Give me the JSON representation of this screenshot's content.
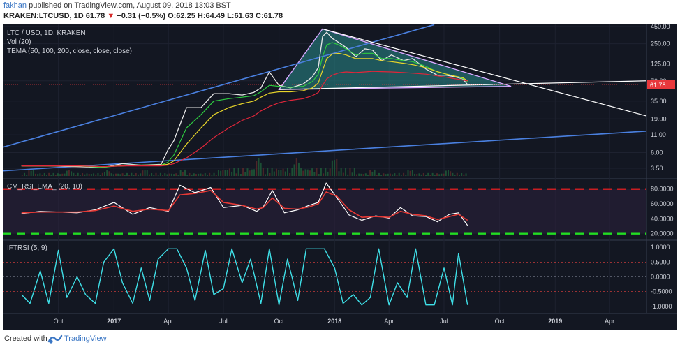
{
  "header": {
    "author": "fakhan",
    "published_text": "published on TradingView.com, August 09, 2018 13:03 BST",
    "symbol": "KRAKEN:LTCUSD, 1D",
    "last": "61.78",
    "change": "−0.31 (−0.5%)",
    "ohlc": "O:62.25 H:64.49 L:61.63 C:61.78"
  },
  "footer": {
    "created_with": "Created with",
    "brand": "TradingView"
  },
  "colors": {
    "background": "#131722",
    "candle_up": "#e8e8e8",
    "tema_50": "#2ecc40",
    "tema_100": "#e8d52a",
    "tema_200": "#e0263a",
    "rsi_line": "#ffffff",
    "rsi_ema": "#e53935",
    "overbought": "#ff1f1f",
    "oversold": "#22dd22",
    "iftrsi": "#3fe0e8",
    "trend_blue": "#4a80e0",
    "triangle": "#d7a8ff",
    "triangle_fill": "#2a8c8c",
    "price_tag": "#e8383c"
  },
  "chart_data": [
    {
      "type": "line",
      "pane": "price",
      "title": "LTC / USD, 1D, KRAKEN",
      "indicators": [
        "Vol (20)",
        "TEMA (50, 100, 200, close, close, close)"
      ],
      "scale": "log",
      "y_ticks": [
        "450.00",
        "250.00",
        "125.00",
        "70.00",
        "35.00",
        "19.00",
        "11.00",
        "6.00",
        "3.50"
      ],
      "last_price_label": "61.78",
      "x": [
        "2016-08-01",
        "2016-09-15",
        "2016-11-01",
        "2016-12-15",
        "2017-01-15",
        "2017-02-15",
        "2017-03-20",
        "2017-03-31",
        "2017-04-10",
        "2017-05-01",
        "2017-05-25",
        "2017-06-15",
        "2017-07-10",
        "2017-08-01",
        "2017-08-20",
        "2017-09-01",
        "2017-09-15",
        "2017-10-01",
        "2017-10-20",
        "2017-11-10",
        "2017-11-25",
        "2017-12-05",
        "2017-12-12",
        "2017-12-19",
        "2017-12-28",
        "2018-01-08",
        "2018-01-20",
        "2018-02-05",
        "2018-02-20",
        "2018-03-05",
        "2018-03-20",
        "2018-04-05",
        "2018-04-25",
        "2018-05-10",
        "2018-06-01",
        "2018-06-20",
        "2018-07-05",
        "2018-07-20",
        "2018-08-01",
        "2018-08-09"
      ],
      "series": [
        {
          "name": "LTCUSD close",
          "values": [
            3.8,
            3.8,
            3.7,
            3.6,
            4.1,
            3.9,
            4.0,
            6.5,
            9.0,
            28,
            28,
            45,
            45,
            43,
            47,
            55,
            95,
            60,
            55,
            63,
            80,
            110,
            320,
            370,
            300,
            260,
            220,
            160,
            210,
            200,
            140,
            170,
            140,
            150,
            105,
            85,
            85,
            80,
            75,
            61.78
          ]
        },
        {
          "name": "TEMA 50",
          "values": [
            3.8,
            3.8,
            3.8,
            3.6,
            3.9,
            3.9,
            3.9,
            4.3,
            5.5,
            14,
            22,
            35,
            38,
            40,
            42,
            48,
            60,
            58,
            56,
            58,
            68,
            88,
            160,
            240,
            260,
            240,
            210,
            170,
            180,
            180,
            150,
            150,
            140,
            135,
            115,
            95,
            88,
            82,
            76,
            68
          ]
        },
        {
          "name": "TEMA 100",
          "values": [
            3.8,
            3.8,
            3.8,
            3.7,
            3.8,
            3.9,
            3.9,
            4.0,
            4.5,
            8,
            14,
            22,
            28,
            32,
            35,
            40,
            46,
            48,
            48,
            50,
            55,
            65,
            100,
            150,
            175,
            180,
            170,
            150,
            150,
            150,
            140,
            135,
            128,
            122,
            110,
            96,
            88,
            82,
            78,
            70
          ]
        },
        {
          "name": "TEMA 200",
          "values": [
            3.8,
            3.8,
            3.8,
            3.7,
            3.8,
            3.8,
            3.8,
            3.9,
            4.1,
            5,
            7,
            10,
            14,
            18,
            21,
            25,
            29,
            33,
            36,
            38,
            42,
            47,
            60,
            75,
            85,
            92,
            95,
            93,
            95,
            97,
            96,
            95,
            93,
            91,
            88,
            83,
            79,
            75,
            72,
            70
          ]
        }
      ]
    },
    {
      "type": "line",
      "pane": "rsi",
      "title": "CM_RSI_EMA_ (20, 10)",
      "y_ticks": [
        "80.0000",
        "60.0000",
        "40.0000",
        "20.0000"
      ],
      "levels": {
        "overbought": 80,
        "oversold": 20
      },
      "ylim": [
        15,
        90
      ],
      "x": [
        "2016-08-01",
        "2016-09-01",
        "2016-10-01",
        "2016-11-01",
        "2016-12-01",
        "2017-01-01",
        "2017-02-01",
        "2017-03-01",
        "2017-04-01",
        "2017-04-20",
        "2017-05-15",
        "2017-06-10",
        "2017-07-01",
        "2017-08-01",
        "2017-08-25",
        "2017-09-05",
        "2017-09-20",
        "2017-10-10",
        "2017-11-01",
        "2017-11-20",
        "2017-12-05",
        "2017-12-18",
        "2018-01-05",
        "2018-01-25",
        "2018-02-15",
        "2018-03-10",
        "2018-04-01",
        "2018-04-20",
        "2018-05-10",
        "2018-06-01",
        "2018-06-20",
        "2018-07-10",
        "2018-07-25",
        "2018-08-09"
      ],
      "series": [
        {
          "name": "RSI",
          "values": [
            47,
            50,
            49,
            48,
            52,
            62,
            46,
            55,
            50,
            85,
            75,
            82,
            55,
            58,
            50,
            56,
            78,
            48,
            52,
            58,
            62,
            88,
            68,
            45,
            38,
            44,
            41,
            55,
            44,
            43,
            36,
            46,
            48,
            31
          ]
        },
        {
          "name": "RSI EMA",
          "values": [
            48,
            49,
            49,
            49,
            51,
            57,
            50,
            53,
            51,
            72,
            74,
            78,
            62,
            58,
            53,
            55,
            68,
            54,
            53,
            56,
            60,
            76,
            70,
            52,
            42,
            43,
            42,
            50,
            46,
            44,
            39,
            43,
            46,
            38
          ]
        }
      ]
    },
    {
      "type": "line",
      "pane": "oscillator",
      "title": "IFTRSI (5, 9)",
      "y_ticks": [
        "1.0000",
        "0.5000",
        "0.0000",
        "-0.5000",
        "-1.0000"
      ],
      "levels": [
        0.5,
        0,
        -0.5
      ],
      "ylim": [
        -1.1,
        1.1
      ],
      "x_ticks": [
        "Oct",
        "2017",
        "Apr",
        "Jul",
        "Oct",
        "2018",
        "Apr",
        "Jul",
        "Oct",
        "2019",
        "Apr"
      ],
      "x": [
        "2016-08-01",
        "2016-08-15",
        "2016-09-01",
        "2016-09-15",
        "2016-10-01",
        "2016-10-15",
        "2016-11-01",
        "2016-11-15",
        "2016-12-01",
        "2016-12-15",
        "2017-01-01",
        "2017-01-15",
        "2017-02-01",
        "2017-02-15",
        "2017-03-01",
        "2017-03-15",
        "2017-04-01",
        "2017-04-15",
        "2017-05-01",
        "2017-05-15",
        "2017-06-01",
        "2017-06-15",
        "2017-07-01",
        "2017-07-15",
        "2017-08-01",
        "2017-08-15",
        "2017-09-01",
        "2017-09-15",
        "2017-10-01",
        "2017-10-15",
        "2017-11-01",
        "2017-11-15",
        "2017-12-01",
        "2017-12-15",
        "2018-01-01",
        "2018-01-15",
        "2018-02-01",
        "2018-02-15",
        "2018-03-01",
        "2018-03-15",
        "2018-04-01",
        "2018-04-15",
        "2018-05-01",
        "2018-05-15",
        "2018-06-01",
        "2018-06-15",
        "2018-07-01",
        "2018-07-15",
        "2018-07-25",
        "2018-08-09"
      ],
      "series": [
        {
          "name": "IFTRSI",
          "values": [
            -0.6,
            -0.9,
            0.2,
            -0.9,
            0.9,
            -0.7,
            0.0,
            -0.6,
            -0.9,
            0.5,
            0.95,
            -0.2,
            -0.9,
            0.3,
            -0.8,
            0.6,
            0.95,
            0.95,
            0.3,
            -0.8,
            0.9,
            -0.6,
            -0.4,
            0.95,
            -0.2,
            0.6,
            -0.9,
            0.95,
            -0.95,
            0.6,
            -0.8,
            0.95,
            0.95,
            0.95,
            0.3,
            -0.9,
            -0.6,
            -0.95,
            -0.7,
            0.95,
            -0.95,
            -0.2,
            -0.7,
            0.95,
            -0.95,
            -0.95,
            0.3,
            -0.95,
            0.8,
            -0.95
          ]
        }
      ]
    }
  ]
}
